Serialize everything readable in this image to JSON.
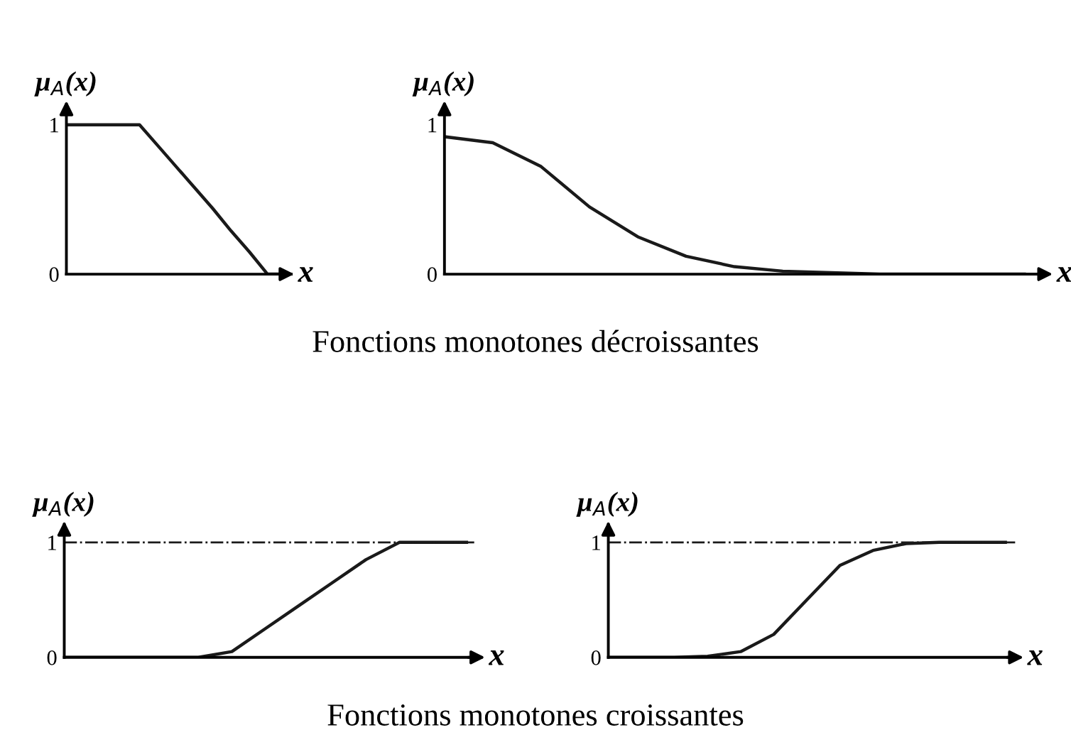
{
  "chart_data": [
    {
      "type": "line",
      "ylabel": "μ$_{A}$(x)",
      "xlabel": "x",
      "categories": [
        null,
        null,
        null,
        null,
        null,
        null,
        null,
        null,
        null,
        null,
        null,
        null,
        null
      ],
      "series": [
        {
          "color": "#1a1a1a",
          "values": [
            1,
            1,
            1,
            1,
            1,
            0.86,
            0.72,
            0.58,
            0.44,
            0.29,
            0.15,
            0,
            0
          ]
        }
      ],
      "ylim": [
        0,
        1.12
      ],
      "yticks": [
        0,
        1
      ],
      "tick_labels": "y",
      "annotations": [
        "Fonctions monotones décroissantes"
      ]
    },
    {
      "type": "line",
      "ylabel": "μ$_{A}$(x)",
      "xlabel": "x",
      "categories": [
        null,
        null,
        null,
        null,
        null,
        null,
        null,
        null,
        null,
        null,
        null,
        null,
        null
      ],
      "series": [
        {
          "color": "#1a1a1a",
          "values": [
            0.92,
            0.88,
            0.72,
            0.45,
            0.25,
            0.12,
            0.05,
            0.02,
            0.01,
            0,
            0,
            0,
            0
          ]
        }
      ],
      "ylim": [
        0,
        1.12
      ],
      "yticks": [
        0,
        1
      ],
      "tick_labels": "y"
    },
    {
      "type": "line",
      "ylabel": "μ$_{A}$(x)",
      "xlabel": "x",
      "categories": [
        null,
        null,
        null,
        null,
        null,
        null,
        null,
        null,
        null,
        null,
        null,
        null,
        null
      ],
      "series": [
        {
          "color": "#1a1a1a",
          "values": [
            0,
            0,
            0,
            0,
            0,
            0.05,
            0.25,
            0.45,
            0.65,
            0.85,
            1,
            1,
            1
          ]
        }
      ],
      "ylim": [
        0,
        1.15
      ],
      "yticks": [
        0,
        1
      ],
      "tick_labels": "y",
      "ref_lines": [
        {
          "axis": "y",
          "value": 1,
          "line_style": "dashdot",
          "color": "#1a1a1a"
        }
      ],
      "annotations": [
        "Fonctions monotones croissantes"
      ]
    },
    {
      "type": "line",
      "ylabel": "μ$_{A}$(x)",
      "xlabel": "x",
      "categories": [
        null,
        null,
        null,
        null,
        null,
        null,
        null,
        null,
        null,
        null,
        null,
        null,
        null
      ],
      "series": [
        {
          "color": "#1a1a1a",
          "values": [
            0,
            0,
            0,
            0.01,
            0.05,
            0.2,
            0.5,
            0.8,
            0.93,
            0.99,
            1,
            1,
            1
          ]
        }
      ],
      "ylim": [
        0,
        1.15
      ],
      "yticks": [
        0,
        1
      ],
      "tick_labels": "y",
      "ref_lines": [
        {
          "axis": "y",
          "value": 1,
          "line_style": "dashdot",
          "color": "#1a1a1a"
        }
      ]
    }
  ]
}
